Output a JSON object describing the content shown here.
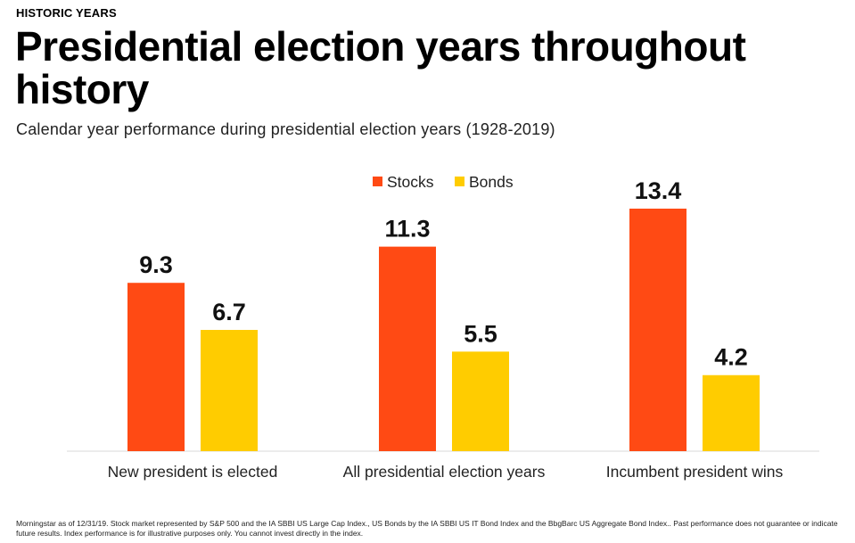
{
  "header": {
    "eyebrow": "HISTORIC YEARS",
    "title": "Presidential election years throughout history",
    "subtitle": "Calendar year performance during presidential election years (1928-2019)"
  },
  "chart_data": {
    "type": "bar",
    "categories": [
      "New president is elected",
      "All presidential election years",
      "Incumbent president wins"
    ],
    "series": [
      {
        "name": "Stocks",
        "color": "#ff4a14",
        "values": [
          9.3,
          11.3,
          13.4
        ],
        "labels": [
          "9.3",
          "11.3",
          "13.4"
        ]
      },
      {
        "name": "Bonds",
        "color": "#ffcc00",
        "values": [
          6.7,
          5.5,
          4.2
        ],
        "labels": [
          "6.7",
          "5.5",
          "4.2"
        ]
      }
    ],
    "ylim": [
      0,
      14
    ],
    "grid": false,
    "legend_position": "top-center"
  },
  "footnote": "Morningstar as of 12/31/19. Stock market represented by S&P 500 and the IA SBBI US Large Cap Index., US Bonds by the IA SBBI US IT Bond Index and the BbgBarc US Aggregate Bond Index.. Past performance does not guarantee or indicate future results. Index performance is for illustrative purposes only. You cannot invest directly in the index."
}
